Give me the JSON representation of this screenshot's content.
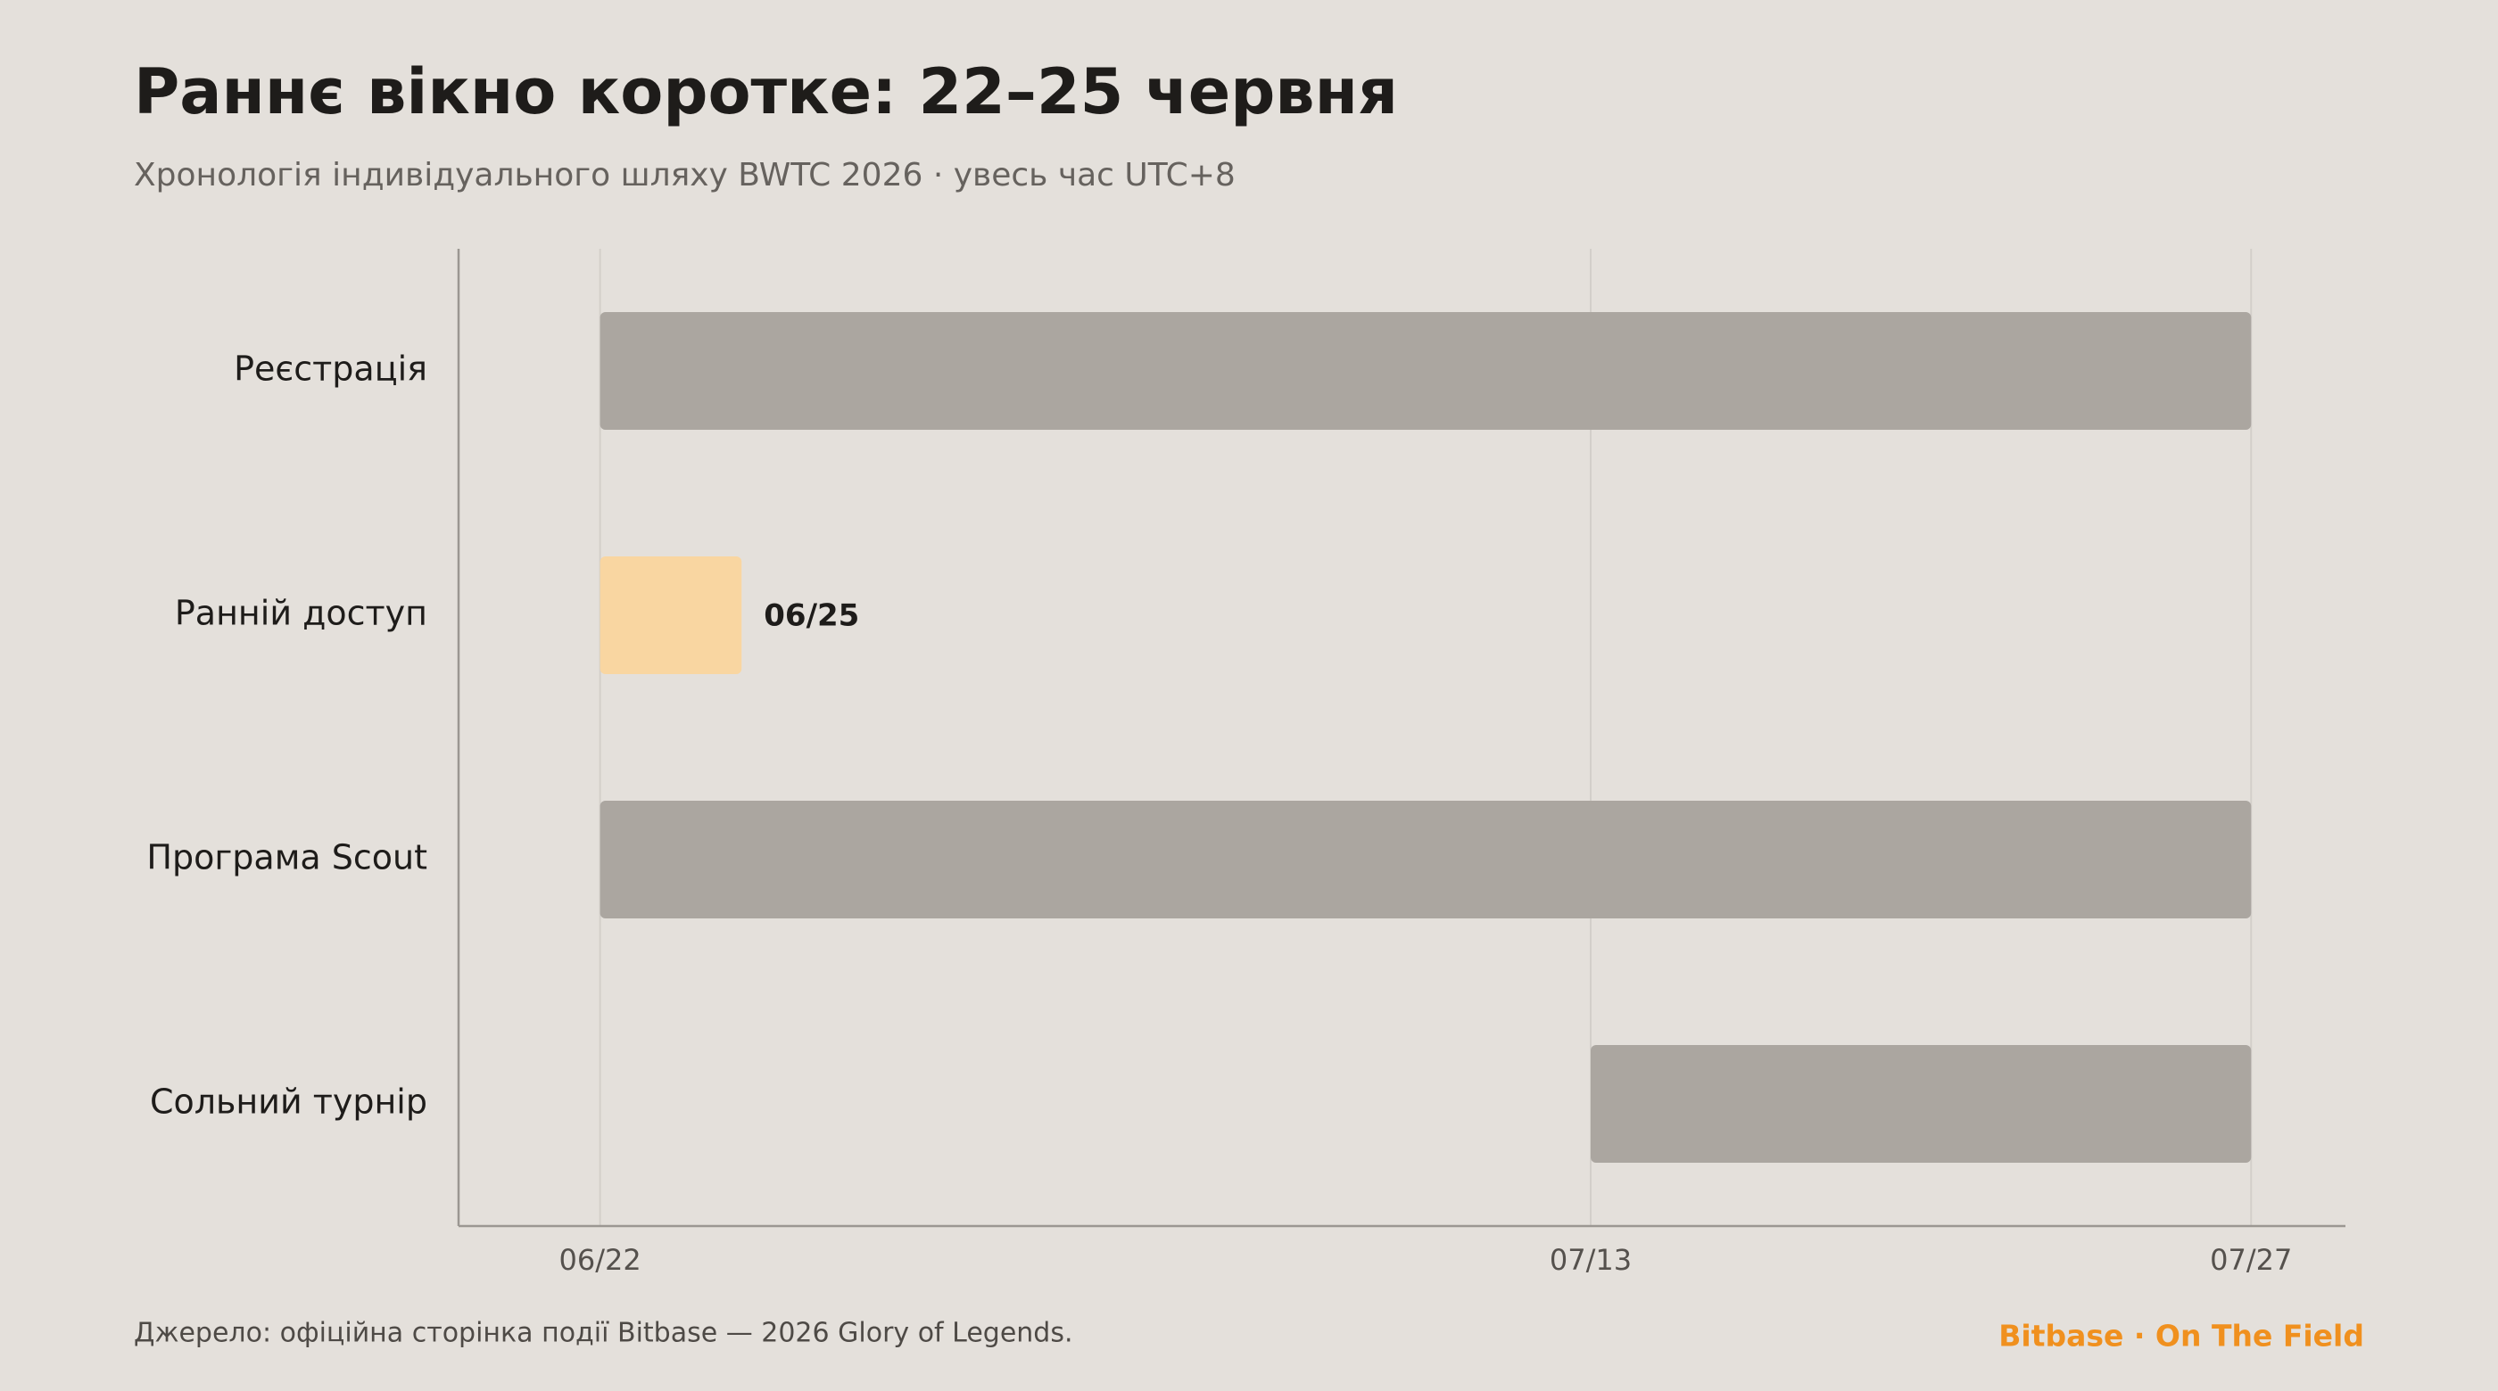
{
  "chart_data": {
    "type": "gantt",
    "title": "Раннє вікно коротке: 22–25 червня",
    "subtitle": "Хронологія індивідуального шляху BWTC 2026 · увесь час UTC+8",
    "categories": [
      "Реєстрація",
      "Ранній доступ",
      "Програма Scout",
      "Сольний турнір"
    ],
    "start": [
      "06/22",
      "06/22",
      "06/22",
      "07/13"
    ],
    "end": [
      "07/27",
      "06/25",
      "07/27",
      "07/27"
    ],
    "color": "#aba6a0",
    "highlight": "Ранній доступ",
    "highlight_color": "#f9d6a1",
    "xlim": [
      "06/19",
      "07/29"
    ],
    "xticks": [
      "06/22",
      "07/13",
      "07/27"
    ],
    "grid": true,
    "source": "Джерело: офіційна сторінка події Bitbase — 2026 Glory of Legends.",
    "brand": "Bitbase · On The Field"
  }
}
